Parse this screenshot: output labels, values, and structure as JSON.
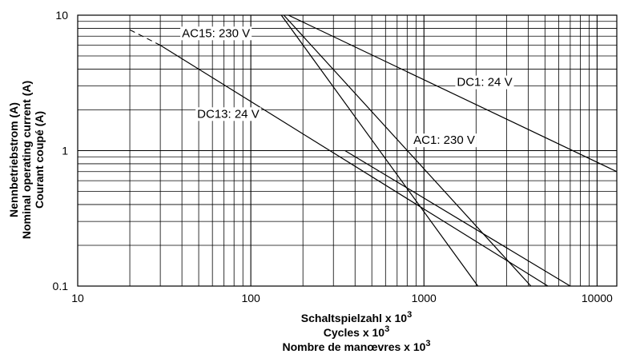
{
  "chart_data": {
    "type": "line",
    "x_scale": "log",
    "y_scale": "log",
    "xlim": [
      10,
      13000
    ],
    "ylim": [
      0.1,
      10
    ],
    "grid": true,
    "x_ticks": [
      {
        "value": 10,
        "label": "10"
      },
      {
        "value": 100,
        "label": "100"
      },
      {
        "value": 1000,
        "label": "1000"
      },
      {
        "value": 10000,
        "label": "10000"
      }
    ],
    "y_ticks": [
      {
        "value": 0.1,
        "label": "0.1"
      },
      {
        "value": 1,
        "label": "1"
      },
      {
        "value": 10,
        "label": "10"
      }
    ],
    "xlabel_lines": [
      {
        "text": "Schaltspielzahl x 10",
        "sup": "3"
      },
      {
        "text": "Cycles x 10",
        "sup": "3"
      },
      {
        "text": "Nombre de manœvres x 10",
        "sup": "3"
      }
    ],
    "ylabel_lines": [
      "Nennbetriebstrom  (A)",
      "Nominal operating current (A)",
      "Courant coupé (A)"
    ],
    "series": [
      {
        "name": "AC15: 230 V",
        "points": [
          [
            150,
            10
          ],
          [
            2050,
            0.1
          ]
        ],
        "label_at": [
          40,
          6.9
        ]
      },
      {
        "name": "DC1: 24 V",
        "points": [
          [
            165,
            10
          ],
          [
            13000,
            0.7
          ]
        ],
        "label_at": [
          1550,
          3.0
        ]
      },
      {
        "name": "AC1: 230 V",
        "points": [
          [
            155,
            10
          ],
          [
            4150,
            0.1
          ]
        ],
        "label_at": [
          870,
          1.12
        ]
      },
      {
        "name": "DC13: 24 V",
        "points": [
          [
            30,
            6.0
          ],
          [
            5200,
            0.1
          ]
        ],
        "dashed_points": [
          [
            20,
            7.8
          ],
          [
            30,
            6.0
          ]
        ],
        "label_at": [
          49,
          1.75
        ]
      },
      {
        "name": "",
        "points": [
          [
            350,
            1.0
          ],
          [
            7000,
            0.1
          ]
        ]
      }
    ]
  }
}
